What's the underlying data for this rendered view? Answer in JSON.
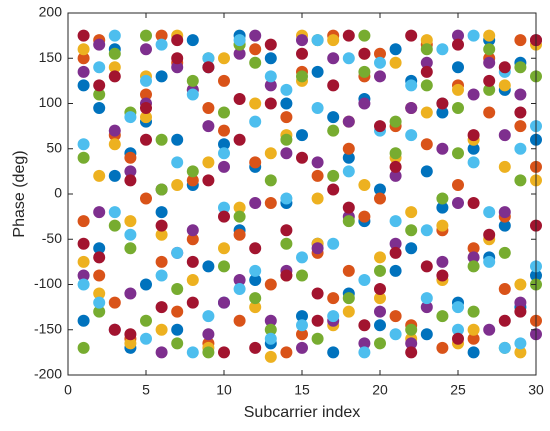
{
  "chart_data": {
    "type": "scatter",
    "xlabel": "Subcarrier index",
    "ylabel": "Phase (deg)",
    "xlim": [
      0,
      30
    ],
    "xticks": [
      0,
      5,
      10,
      15,
      20,
      25,
      30
    ],
    "ylim": [
      -200,
      200
    ],
    "yticks": [
      -200,
      -150,
      -100,
      -50,
      0,
      50,
      100,
      150,
      200
    ],
    "x": [
      1,
      1,
      2,
      2,
      3,
      3,
      4,
      4,
      5,
      5,
      6,
      6,
      7,
      7,
      8,
      8,
      9,
      9,
      10,
      10,
      11,
      11,
      12,
      12,
      13,
      13,
      14,
      14,
      15,
      15,
      16,
      16,
      17,
      17,
      18,
      18,
      19,
      19,
      20,
      20,
      21,
      21,
      22,
      22,
      23,
      23,
      24,
      24,
      25,
      25,
      26,
      26,
      27,
      27,
      28,
      28,
      29,
      29,
      30,
      30
    ],
    "series": [
      {
        "color": "#0072BD",
        "values": [
          120,
          -140,
          95,
          -60,
          20,
          160,
          -170,
          45,
          80,
          -100,
          130,
          -20,
          -150,
          60,
          10,
          170,
          -80,
          140,
          55,
          -120,
          175,
          -40,
          -95,
          30,
          150,
          -165,
          -10,
          100,
          65,
          -135,
          135,
          -55,
          -175,
          85,
          40,
          -110,
          105,
          -30,
          -145,
          5,
          160,
          -85,
          -60,
          125,
          25,
          -155,
          90,
          -15,
          -120,
          140,
          50,
          -175,
          170,
          -70,
          -35,
          115,
          145,
          -125,
          -90,
          60
        ]
      },
      {
        "color": "#D95319",
        "values": [
          -30,
          150,
          170,
          -90,
          -120,
          65,
          40,
          -160,
          110,
          -5,
          -75,
          175,
          145,
          -130,
          15,
          -50,
          -165,
          95,
          70,
          125,
          -45,
          -140,
          160,
          35,
          -100,
          -10,
          85,
          -175,
          -155,
          135,
          20,
          -65,
          175,
          -115,
          -85,
          50,
          130,
          -25,
          -5,
          155,
          -135,
          75,
          95,
          -145,
          55,
          165,
          -170,
          -40,
          120,
          10,
          -60,
          -160,
          150,
          90,
          -25,
          -105,
          75,
          170,
          -140,
          30
        ]
      },
      {
        "color": "#EDB120",
        "values": [
          160,
          -75,
          -110,
          20,
          55,
          140,
          -165,
          -30,
          130,
          85,
          -45,
          -150,
          175,
          10,
          -95,
          115,
          35,
          -170,
          150,
          -60,
          -15,
          165,
          100,
          -125,
          -180,
          45,
          65,
          -90,
          125,
          175,
          -55,
          -5,
          170,
          -145,
          -130,
          80,
          10,
          155,
          -70,
          -115,
          145,
          40,
          -160,
          -20,
          90,
          170,
          -35,
          -95,
          115,
          -165,
          -150,
          60,
          175,
          -50,
          30,
          120,
          -100,
          -175,
          165,
          15
        ]
      },
      {
        "color": "#7E2F8E",
        "values": [
          -90,
          135,
          165,
          -20,
          -150,
          70,
          25,
          -110,
          100,
          160,
          -175,
          5,
          140,
          -65,
          -40,
          115,
          75,
          -155,
          -120,
          30,
          155,
          -95,
          -10,
          175,
          120,
          -140,
          -85,
          45,
          170,
          -170,
          35,
          -60,
          -140,
          150,
          80,
          -25,
          -165,
          100,
          130,
          -130,
          -55,
          20,
          95,
          -165,
          -125,
          145,
          50,
          -75,
          175,
          -10,
          -70,
          110,
          145,
          -150,
          -20,
          65,
          110,
          -120,
          -155,
          170
        ]
      },
      {
        "color": "#77AC30",
        "values": [
          40,
          -170,
          -130,
          110,
          155,
          -35,
          -60,
          90,
          175,
          -140,
          5,
          60,
          -105,
          -165,
          125,
          25,
          -175,
          150,
          90,
          -80,
          -25,
          165,
          145,
          -115,
          -150,
          15,
          60,
          -55,
          -90,
          130,
          170,
          -160,
          20,
          70,
          -115,
          -30,
          135,
          175,
          -165,
          -85,
          80,
          45,
          -40,
          -150,
          160,
          120,
          -135,
          -5,
          45,
          95,
          -80,
          -130,
          115,
          160,
          -170,
          -65,
          15,
          140,
          130,
          -100
        ]
      },
      {
        "color": "#4DBEEE",
        "values": [
          -100,
          55,
          140,
          -120,
          -20,
          175,
          85,
          -45,
          -160,
          125,
          165,
          -90,
          -65,
          35,
          110,
          -175,
          -135,
          150,
          45,
          -15,
          170,
          -105,
          -85,
          80,
          130,
          -160,
          -5,
          115,
          -145,
          -70,
          95,
          170,
          -55,
          -135,
          150,
          25,
          -175,
          -95,
          70,
          145,
          -30,
          -155,
          120,
          65,
          -115,
          -40,
          160,
          100,
          -150,
          -125,
          35,
          175,
          -75,
          -20,
          135,
          -170,
          -165,
          50,
          75,
          -80
        ]
      },
      {
        "color": "#A2142F",
        "values": [
          175,
          -55,
          -70,
          120,
          130,
          -150,
          -155,
          15,
          60,
          95,
          -35,
          -125,
          150,
          170,
          -120,
          -75,
          15,
          140,
          -175,
          -25,
          105,
          60,
          -60,
          -170,
          165,
          100,
          -90,
          -40,
          40,
          155,
          -140,
          -110,
          120,
          5,
          -15,
          175,
          155,
          -145,
          -105,
          75,
          30,
          -65,
          175,
          -175,
          -80,
          135,
          100,
          -90,
          -160,
          165,
          65,
          -10,
          -45,
          125,
          140,
          -140,
          -130,
          90,
          170,
          -35
        ]
      }
    ]
  }
}
